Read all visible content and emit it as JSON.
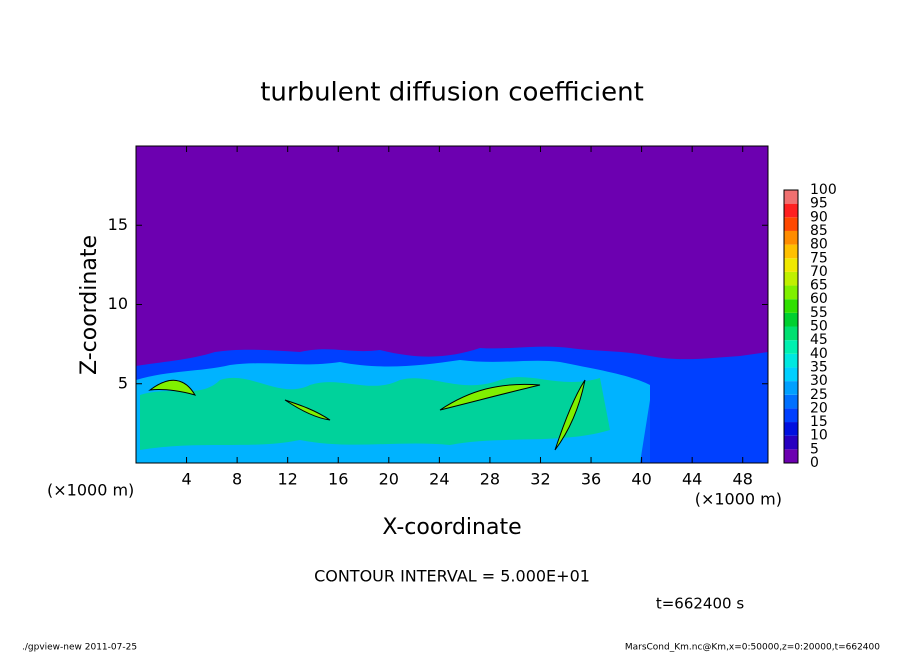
{
  "chart_data": {
    "type": "contour",
    "title": "turbulent diffusion coefficient",
    "xlabel": "X-coordinate",
    "ylabel": "Z-coordinate",
    "x_unit_left": "(×1000 m)",
    "x_unit_right": "(×1000 m)",
    "xlim": [
      0,
      50
    ],
    "xticks": [
      4,
      8,
      12,
      16,
      20,
      24,
      28,
      32,
      36,
      40,
      44,
      48
    ],
    "ylim": [
      0,
      20
    ],
    "yticks": [
      5,
      10,
      15
    ],
    "levels": [
      0,
      5,
      10,
      15,
      20,
      25,
      30,
      35,
      40,
      45,
      50,
      55,
      60,
      65,
      70,
      75,
      80,
      85,
      90,
      95,
      100
    ],
    "colors": [
      "#6c00b0",
      "#2800c0",
      "#0010e0",
      "#0040ff",
      "#0070ff",
      "#00a0ff",
      "#00d0ff",
      "#00e8e0",
      "#00f0b0",
      "#00e070",
      "#00d030",
      "#30e000",
      "#80f000",
      "#c0f000",
      "#f0e800",
      "#ffc000",
      "#ff8c00",
      "#ff4800",
      "#ff2020",
      "#f07070"
    ],
    "annotation": "CONTOUR INTERVAL = 5.000E+01",
    "time_label": "t=662400 s",
    "footer_left": "./gpview-new  2011-07-25",
    "footer_right": "MarsCond_Km.nc@Km,x=0:50000,z=0:20000,t=662400"
  }
}
